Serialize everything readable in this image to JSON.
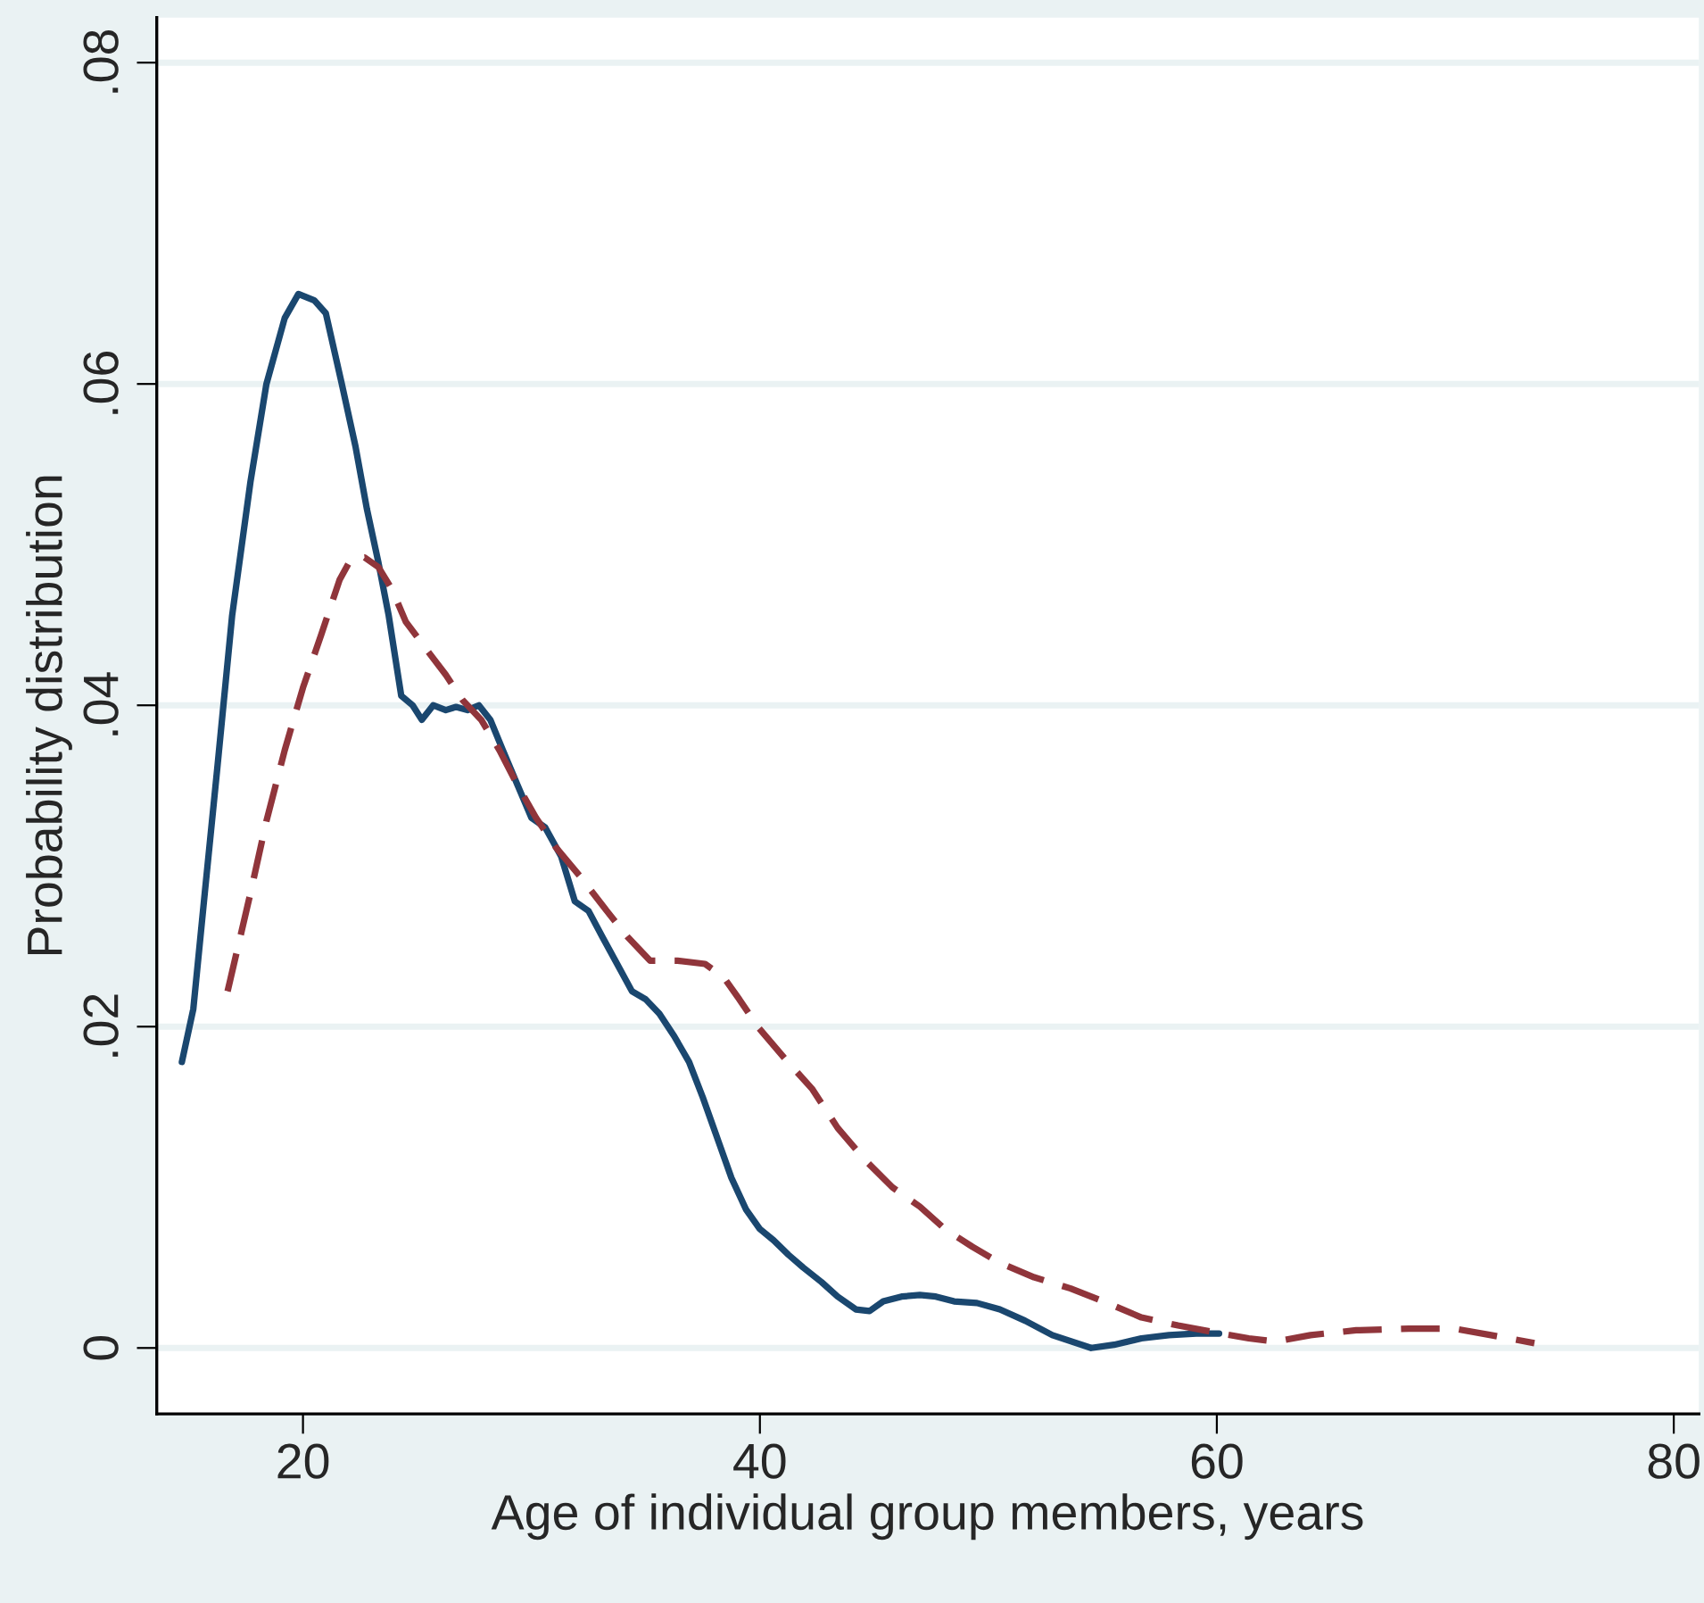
{
  "chart_data": {
    "type": "line",
    "xlabel": "Age of individual group members, years",
    "ylabel": "Probability distribution",
    "xlim": [
      13.6,
      81.1
    ],
    "ylim": [
      -0.0041,
      0.0828
    ],
    "xticks": [
      20,
      40,
      60,
      80
    ],
    "yticks": [
      0,
      {
        "value": 0.02,
        "label": ".02"
      },
      {
        "value": 0.04,
        "label": ".04"
      },
      {
        "value": 0.06,
        "label": ".06"
      },
      {
        "value": 0.08,
        "label": ".08"
      }
    ],
    "grid": "y",
    "legend": false,
    "marker": "none",
    "series": [
      {
        "color": "#1a476f",
        "line_style": "solid",
        "x": [
          14.7,
          15.2,
          15.7,
          16.25,
          16.9,
          17.7,
          18.4,
          19.2,
          19.8,
          20.5,
          21,
          21.7,
          22.3,
          22.8,
          23.3,
          23.75,
          24.3,
          24.8,
          25.2,
          25.7,
          26.25,
          26.7,
          27.2,
          27.7,
          28.2,
          28.75,
          29.4,
          30,
          30.6,
          31.3,
          31.9,
          32.5,
          33.1,
          33.75,
          34.4,
          35,
          35.6,
          36.25,
          36.9,
          37.5,
          38.2,
          38.75,
          39.4,
          40,
          40.6,
          41.25,
          41.9,
          42.7,
          43.4,
          44.2,
          44.8,
          45.4,
          46.2,
          47,
          47.7,
          48.5,
          49.5,
          50.5,
          51.6,
          52.8,
          54.5,
          55.5,
          56.7,
          57.9,
          59.1,
          60.1
        ],
        "values": [
          0.0178,
          0.0211,
          0.0283,
          0.0361,
          0.0456,
          0.0539,
          0.06,
          0.0641,
          0.0656,
          0.0652,
          0.0644,
          0.06,
          0.0561,
          0.0522,
          0.0489,
          0.0456,
          0.0406,
          0.04,
          0.0391,
          0.04,
          0.0397,
          0.0399,
          0.0397,
          0.04,
          0.0391,
          0.0372,
          0.035,
          0.033,
          0.0324,
          0.0306,
          0.0278,
          0.0272,
          0.0256,
          0.0239,
          0.0222,
          0.0217,
          0.0208,
          0.0194,
          0.0178,
          0.0156,
          0.0128,
          0.0106,
          0.0086,
          0.0074,
          0.0067,
          0.0058,
          0.005,
          0.0041,
          0.0032,
          0.0024,
          0.0023,
          0.0029,
          0.0032,
          0.0033,
          0.0032,
          0.0029,
          0.0028,
          0.0024,
          0.0017,
          0.0008,
          0,
          0.0002,
          0.0006,
          0.0008,
          0.0009,
          0.0009
        ]
      },
      {
        "color": "#90353b",
        "line_style": "dashed",
        "x": [
          16.7,
          17.7,
          18.4,
          19.2,
          20,
          20.8,
          21.6,
          22.1,
          22.7,
          23.3,
          23.9,
          24.5,
          25.5,
          26.25,
          27,
          27.8,
          28.6,
          29.4,
          30.2,
          31.1,
          32.1,
          33.3,
          34.2,
          35.2,
          36.4,
          37.6,
          38.4,
          39.1,
          39.9,
          41.1,
          42.3,
          43.4,
          44.6,
          45.8,
          47,
          48.1,
          49.3,
          50.5,
          52,
          53.6,
          55.2,
          56.7,
          58.3,
          59.8,
          61.4,
          62.6,
          64.1,
          66.1,
          68.4,
          70.4,
          72,
          73.9
        ],
        "values": [
          0.0222,
          0.0283,
          0.0328,
          0.0372,
          0.0411,
          0.0444,
          0.0478,
          0.0491,
          0.0492,
          0.0486,
          0.0472,
          0.0452,
          0.0433,
          0.0419,
          0.0403,
          0.0391,
          0.0372,
          0.035,
          0.033,
          0.0311,
          0.0294,
          0.0272,
          0.0256,
          0.0241,
          0.0241,
          0.0239,
          0.0231,
          0.0217,
          0.02,
          0.018,
          0.0161,
          0.0137,
          0.0117,
          0.01,
          0.0088,
          0.0074,
          0.0063,
          0.0053,
          0.0044,
          0.0037,
          0.0028,
          0.0019,
          0.0014,
          0.001,
          0.0006,
          0.0004,
          0.0008,
          0.0011,
          0.0012,
          0.0012,
          0.0008,
          0.0003
        ]
      }
    ]
  }
}
